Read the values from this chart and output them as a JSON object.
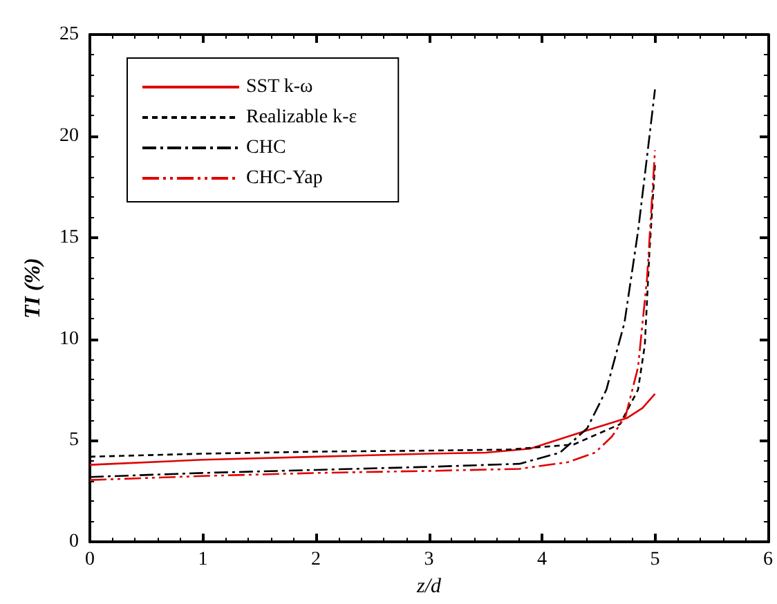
{
  "chart_data": {
    "type": "line",
    "xlabel": "z/d",
    "ylabel": "TI (%)",
    "xlim": [
      0,
      6
    ],
    "xticks": [
      0,
      1,
      2,
      3,
      4,
      5,
      6
    ],
    "ylim": [
      0,
      25
    ],
    "yticks": [
      0,
      5,
      10,
      15,
      20,
      25
    ],
    "grid": false,
    "legend": "top left",
    "marker": "none",
    "series": [
      {
        "name": "SST k-ω",
        "color": "#e00000",
        "line_style": "solid",
        "x": [
          0,
          1,
          2,
          3,
          3.5,
          3.9,
          4.4,
          4.75,
          4.89,
          5.0
        ],
        "values": [
          3.8,
          4.05,
          4.2,
          4.35,
          4.4,
          4.6,
          5.5,
          6.1,
          6.6,
          7.3
        ]
      },
      {
        "name": "Realizable k-ε",
        "color": "#000000",
        "line_style": "dashed",
        "x": [
          0,
          1,
          2,
          3,
          3.7,
          4.28,
          4.69,
          4.85,
          4.91,
          4.95,
          5.0
        ],
        "values": [
          4.2,
          4.35,
          4.45,
          4.5,
          4.55,
          4.8,
          5.8,
          7.5,
          9.7,
          14.2,
          18.6
        ]
      },
      {
        "name": "CHC",
        "color": "#000000",
        "line_style": "dashdot",
        "x": [
          0,
          1,
          2,
          3,
          3.8,
          4.16,
          4.4,
          4.57,
          4.73,
          4.85,
          4.93,
          5.0
        ],
        "values": [
          3.2,
          3.4,
          3.55,
          3.7,
          3.85,
          4.4,
          5.6,
          7.5,
          10.8,
          15.3,
          19.0,
          22.3
        ]
      },
      {
        "name": "CHC-Yap",
        "color": "#e00000",
        "line_style": "dashdotdot",
        "x": [
          0,
          1,
          2,
          3,
          3.8,
          4.23,
          4.47,
          4.62,
          4.74,
          4.85,
          4.93,
          5.0
        ],
        "values": [
          3.05,
          3.25,
          3.4,
          3.5,
          3.6,
          3.93,
          4.4,
          5.2,
          6.2,
          8.6,
          13.0,
          19.3
        ]
      }
    ]
  }
}
